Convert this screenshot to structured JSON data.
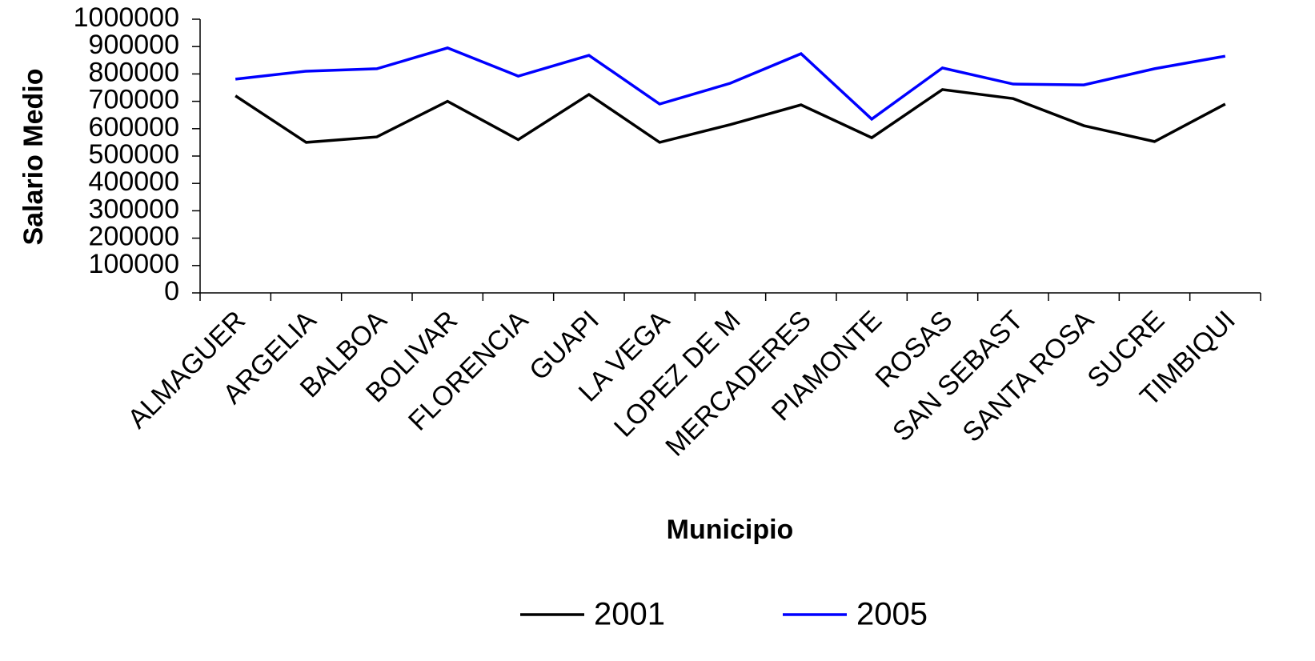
{
  "chart_data": {
    "type": "line",
    "x_label": "Municipio",
    "y_label": "Salario Medio",
    "categories": [
      "ALMAGUER",
      "ARGELIA",
      "BALBOA",
      "BOLIVAR",
      "FLORENCIA",
      "GUAPI",
      "LA VEGA",
      "LOPEZ DE M",
      "MERCADERES",
      "PIAMONTE",
      "ROSAS",
      "SAN SEBAST",
      "SANTA ROSA",
      "SUCRE",
      "TIMBIQUI"
    ],
    "series": [
      {
        "name": "2001",
        "color": "#000000",
        "values": [
          720000,
          550000,
          570000,
          700000,
          560000,
          725000,
          550000,
          615000,
          687000,
          567000,
          743000,
          710000,
          611000,
          553000,
          690000
        ]
      },
      {
        "name": "2005",
        "color": "#0000ff",
        "values": [
          781000,
          810000,
          819000,
          895000,
          792000,
          868000,
          690000,
          766000,
          874000,
          635000,
          822000,
          763000,
          760000,
          819000,
          865000
        ]
      }
    ],
    "ylim": [
      0,
      1000000
    ],
    "yticks": [
      0,
      100000,
      200000,
      300000,
      400000,
      500000,
      600000,
      700000,
      800000,
      900000,
      1000000
    ],
    "grid": false,
    "legend": "bottom"
  }
}
